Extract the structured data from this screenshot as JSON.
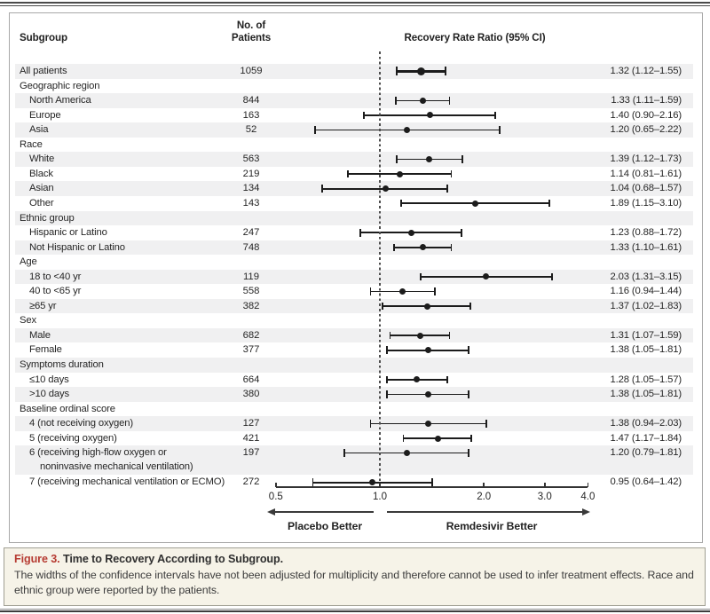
{
  "header": {
    "subgroup_col": "Subgroup",
    "patients_col_line1": "No. of",
    "patients_col_line2": "Patients",
    "plot_title": "Recovery Rate Ratio (95% CI)"
  },
  "axis": {
    "scale": "log",
    "tick_labels": [
      "0.5",
      "1.0",
      "2.0",
      "3.0",
      "4.0"
    ],
    "tick_values": [
      0.5,
      1.0,
      2.0,
      3.0,
      4.0
    ],
    "reference_value": 1.0,
    "left_label": "Placebo Better",
    "right_label": "Remdesivir Better"
  },
  "chart_data": {
    "type": "forest",
    "title": "Recovery Rate Ratio (95% CI)",
    "x_scale": "log",
    "x_ticks": [
      0.5,
      1.0,
      2.0,
      3.0,
      4.0
    ],
    "reference_line": 1.0,
    "rows": [
      {
        "label": "All patients",
        "indent": 0,
        "n": "1059",
        "est": 1.32,
        "lo": 1.12,
        "hi": 1.55,
        "ci": "1.32 (1.12–1.55)",
        "emphasis": true,
        "shaded": true
      },
      {
        "label": "Geographic region",
        "indent": 0,
        "shaded": false
      },
      {
        "label": "North America",
        "indent": 1,
        "n": "844",
        "est": 1.33,
        "lo": 1.11,
        "hi": 1.59,
        "ci": "1.33 (1.11–1.59)",
        "shaded": true
      },
      {
        "label": "Europe",
        "indent": 1,
        "n": "163",
        "est": 1.4,
        "lo": 0.9,
        "hi": 2.16,
        "ci": "1.40 (0.90–2.16)",
        "shaded": false
      },
      {
        "label": "Asia",
        "indent": 1,
        "n": "52",
        "est": 1.2,
        "lo": 0.65,
        "hi": 2.22,
        "ci": "1.20 (0.65–2.22)",
        "shaded": true
      },
      {
        "label": "Race",
        "indent": 0,
        "shaded": false
      },
      {
        "label": "White",
        "indent": 1,
        "n": "563",
        "est": 1.39,
        "lo": 1.12,
        "hi": 1.73,
        "ci": "1.39 (1.12–1.73)",
        "shaded": true
      },
      {
        "label": "Black",
        "indent": 1,
        "n": "219",
        "est": 1.14,
        "lo": 0.81,
        "hi": 1.61,
        "ci": "1.14 (0.81–1.61)",
        "shaded": false
      },
      {
        "label": "Asian",
        "indent": 1,
        "n": "134",
        "est": 1.04,
        "lo": 0.68,
        "hi": 1.57,
        "ci": "1.04 (0.68–1.57)",
        "shaded": true
      },
      {
        "label": "Other",
        "indent": 1,
        "n": "143",
        "est": 1.89,
        "lo": 1.15,
        "hi": 3.1,
        "ci": "1.89 (1.15–3.10)",
        "shaded": false
      },
      {
        "label": "Ethnic group",
        "indent": 0,
        "shaded": true
      },
      {
        "label": "Hispanic or Latino",
        "indent": 1,
        "n": "247",
        "est": 1.23,
        "lo": 0.88,
        "hi": 1.72,
        "ci": "1.23 (0.88–1.72)",
        "shaded": false
      },
      {
        "label": "Not Hispanic or Latino",
        "indent": 1,
        "n": "748",
        "est": 1.33,
        "lo": 1.1,
        "hi": 1.61,
        "ci": "1.33 (1.10–1.61)",
        "shaded": true
      },
      {
        "label": "Age",
        "indent": 0,
        "shaded": false
      },
      {
        "label": "18 to <40 yr",
        "indent": 1,
        "n": "119",
        "est": 2.03,
        "lo": 1.31,
        "hi": 3.15,
        "ci": "2.03 (1.31–3.15)",
        "shaded": true
      },
      {
        "label": "40 to <65 yr",
        "indent": 1,
        "n": "558",
        "est": 1.16,
        "lo": 0.94,
        "hi": 1.44,
        "ci": "1.16 (0.94–1.44)",
        "shaded": false
      },
      {
        "label": "≥65 yr",
        "indent": 1,
        "n": "382",
        "est": 1.37,
        "lo": 1.02,
        "hi": 1.83,
        "ci": "1.37 (1.02–1.83)",
        "shaded": true
      },
      {
        "label": "Sex",
        "indent": 0,
        "shaded": false
      },
      {
        "label": "Male",
        "indent": 1,
        "n": "682",
        "est": 1.31,
        "lo": 1.07,
        "hi": 1.59,
        "ci": "1.31 (1.07–1.59)",
        "shaded": true
      },
      {
        "label": "Female",
        "indent": 1,
        "n": "377",
        "est": 1.38,
        "lo": 1.05,
        "hi": 1.81,
        "ci": "1.38 (1.05–1.81)",
        "shaded": false
      },
      {
        "label": "Symptoms duration",
        "indent": 0,
        "shaded": true
      },
      {
        "label": "≤10 days",
        "indent": 1,
        "n": "664",
        "est": 1.28,
        "lo": 1.05,
        "hi": 1.57,
        "ci": "1.28 (1.05–1.57)",
        "shaded": false
      },
      {
        "label": ">10 days",
        "indent": 1,
        "n": "380",
        "est": 1.38,
        "lo": 1.05,
        "hi": 1.81,
        "ci": "1.38 (1.05–1.81)",
        "shaded": true
      },
      {
        "label": "Baseline ordinal score",
        "indent": 0,
        "shaded": false
      },
      {
        "label": "4 (not receiving oxygen)",
        "indent": 1,
        "n": "127",
        "est": 1.38,
        "lo": 0.94,
        "hi": 2.03,
        "ci": "1.38 (0.94–2.03)",
        "shaded": true
      },
      {
        "label": "5 (receiving oxygen)",
        "indent": 1,
        "n": "421",
        "est": 1.47,
        "lo": 1.17,
        "hi": 1.84,
        "ci": "1.47 (1.17–1.84)",
        "shaded": false
      },
      {
        "label": "6 (receiving high-flow oxygen or",
        "label2": "noninvasive mechanical ventilation)",
        "indent": 1,
        "n": "197",
        "est": 1.2,
        "lo": 0.79,
        "hi": 1.81,
        "ci": "1.20 (0.79–1.81)",
        "shaded": true
      },
      {
        "label": "7 (receiving mechanical ventilation or ECMO)",
        "indent": 1,
        "n": "272",
        "est": 0.95,
        "lo": 0.64,
        "hi": 1.42,
        "ci": "0.95 (0.64–1.42)",
        "shaded": false
      }
    ]
  },
  "caption": {
    "figure_label": "Figure 3.",
    "title": "Time to Recovery According to Subgroup.",
    "body": "The widths of the confidence intervals have not been adjusted for multiplicity and therefore cannot be used to infer treatment effects. Race and ethnic group were reported by the patients."
  },
  "colors": {
    "accent_red": "#b63b32",
    "row_band": "#f0f0f1",
    "marker": "#1c1c1c",
    "caption_bg": "#f6f3e8",
    "box_border": "#a8a8a8"
  }
}
